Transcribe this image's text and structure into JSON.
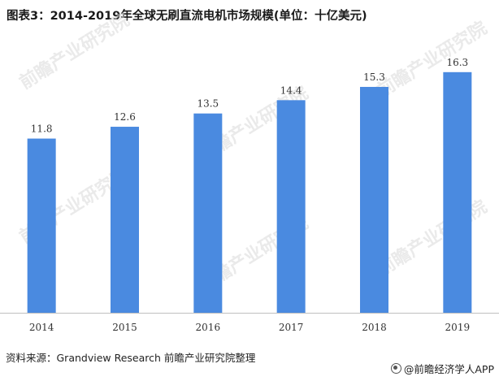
{
  "title": "图表3：2014-2019年全球无刷直流电机市场规模(单位：十亿美元)",
  "source": "资料来源：Grandview Research 前瞻产业研究院整理",
  "brand": "@前瞻经济学人APP",
  "watermark_text": "前瞻产业研究院",
  "colors": {
    "bar": "#4a8ae0",
    "axis": "#bfbfbf"
  },
  "chart_data": {
    "type": "bar",
    "title": "图表3：2014-2019年全球无刷直流电机市场规模(单位：十亿美元)",
    "categories": [
      "2014",
      "2015",
      "2016",
      "2017",
      "2018",
      "2019"
    ],
    "values": [
      11.8,
      12.6,
      13.5,
      14.4,
      15.3,
      16.3
    ],
    "value_labels": [
      "11.8",
      "12.6",
      "13.5",
      "14.4",
      "15.3",
      "16.3"
    ],
    "xlabel": "",
    "ylabel": "",
    "ylim": [
      0,
      17.5
    ],
    "grid": false,
    "legend": "none"
  }
}
